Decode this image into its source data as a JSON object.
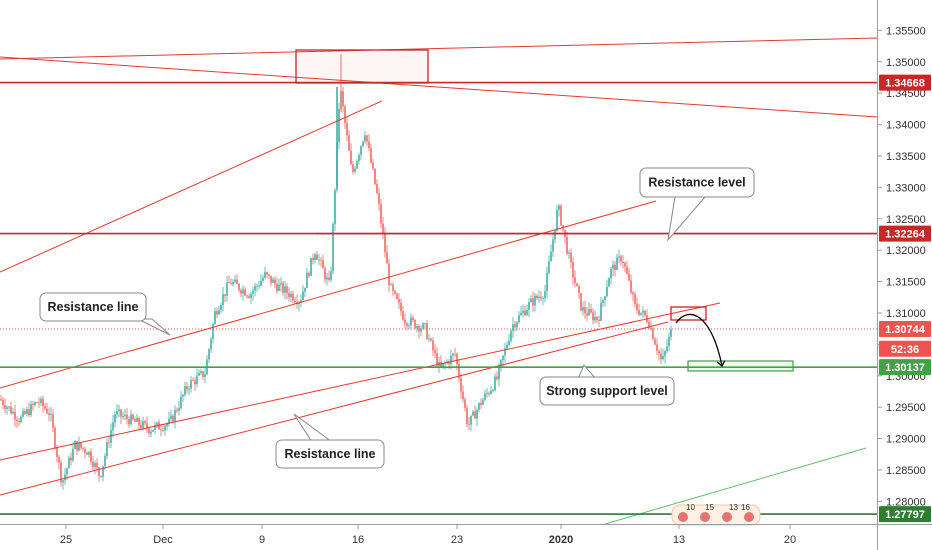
{
  "chart_data": {
    "type": "candlestick",
    "title": "",
    "xlabel": "",
    "ylabel": "",
    "ylim": [
      1.2738,
      1.3572
    ],
    "x_ticks": [
      "25",
      "Dec",
      "9",
      "16",
      "23",
      "2020",
      "13",
      "20"
    ],
    "y_ticks": [
      "1.35500",
      "1.35000",
      "1.34500",
      "1.34000",
      "1.33500",
      "1.33000",
      "1.32500",
      "1.32000",
      "1.31500",
      "1.31000",
      "1.30500",
      "1.30000",
      "1.29500",
      "1.29000",
      "1.28500",
      "1.28000"
    ],
    "price_labels": [
      {
        "name": "price-tag-134668",
        "text": "1.34668",
        "value": 1.34668,
        "color": "#c62828"
      },
      {
        "name": "price-tag-132264",
        "text": "1.32264",
        "value": 1.32264,
        "color": "#c62828"
      },
      {
        "name": "price-tag-130744",
        "text": "1.30744",
        "value": 1.30744,
        "color": "#ef5350"
      },
      {
        "name": "price-tag-countdown",
        "text": "52:36",
        "value": 1.3043,
        "color": "#ef5350"
      },
      {
        "name": "price-tag-130137",
        "text": "1.30137",
        "value": 1.30137,
        "color": "#43a047"
      },
      {
        "name": "price-tag-127797",
        "text": "1.27797",
        "value": 1.27797,
        "color": "#2e7d32"
      }
    ],
    "horizontal_levels": [
      {
        "name": "resistance-level-134668",
        "value": 1.34668,
        "color": "#c62828"
      },
      {
        "name": "resistance-level-132264",
        "value": 1.32264,
        "color": "#c62828"
      },
      {
        "name": "support-level-130137",
        "value": 1.30137,
        "color": "#43a047"
      },
      {
        "name": "support-level-127797",
        "value": 1.27797,
        "color": "#2e7d32"
      }
    ],
    "current_price": 1.30744,
    "annotations": {
      "resistance_level": "Resistance level",
      "resistance_line_upper": "Resistance line",
      "resistance_line_lower": "Resistance line",
      "strong_support": "Strong support level"
    },
    "colors": {
      "up": "#26a69a",
      "down": "#ef5350",
      "resistance": "#c62828",
      "support": "#43a047"
    },
    "events_labels": [
      "10",
      "15",
      "13",
      "16"
    ]
  }
}
